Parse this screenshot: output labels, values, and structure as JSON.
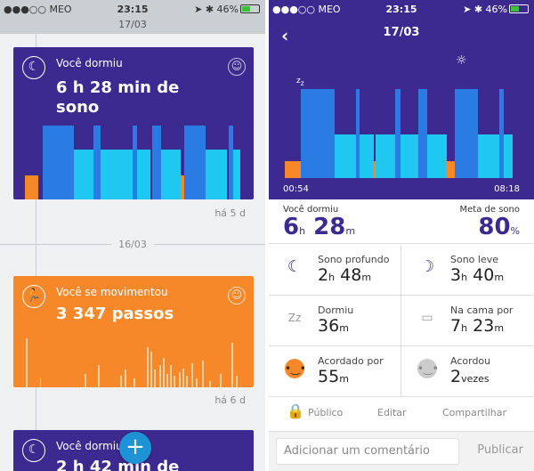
{
  "status": {
    "carrier": "●●●○○ MEO",
    "time": "23:15",
    "battery": "46%"
  },
  "left": {
    "date_header": "17/03",
    "sleep_card": {
      "label": "Você dormiu",
      "value": "6 h 28 min de sono",
      "ago": "há 5 d"
    },
    "separator_date": "16/03",
    "move_card": {
      "label": "Você se movimentou",
      "value": "3 347 passos",
      "ago": "há 6 d"
    },
    "sleep_card2": {
      "label": "Você dormiu",
      "value": "2 h 42 min de"
    },
    "fab": "+"
  },
  "right": {
    "back": "‹",
    "title": "17/03",
    "start_time": "00:54",
    "end_time": "08:18",
    "slept_label": "Você dormiu",
    "slept_h": "6",
    "slept_h_unit": "h",
    "slept_m": "28",
    "slept_m_unit": "m",
    "goal_label": "Meta de sono",
    "goal_value": "80",
    "goal_unit": "%",
    "cells": {
      "deep": {
        "label": "Sono profundo",
        "h": "2",
        "m": "48"
      },
      "light": {
        "label": "Sono leve",
        "h": "3",
        "m": "40"
      },
      "fell": {
        "label": "Dormiu",
        "m": "36"
      },
      "bed": {
        "label": "Na cama por",
        "h": "7",
        "m": "23"
      },
      "awake": {
        "label": "Acordado por",
        "m": "55"
      },
      "woke": {
        "label": "Acordou",
        "n": "2",
        "unit": "vezes"
      }
    },
    "units": {
      "h": "h",
      "m": "m"
    },
    "actions": {
      "public": "Público",
      "edit": "Editar",
      "share": "Compartilhar"
    },
    "comment_placeholder": "Adicionar um comentário",
    "publish": "Publicar"
  },
  "colors": {
    "purple": "#3d2a91",
    "orange": "#f6882a",
    "deep_blue": "#2a7be4",
    "light_blue": "#1ec8f0"
  }
}
